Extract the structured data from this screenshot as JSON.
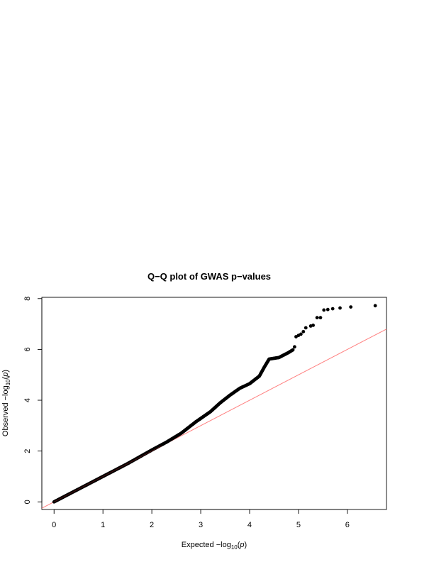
{
  "chart_data": {
    "type": "scatter",
    "title": "Q−Q plot of GWAS p−values",
    "xlabel": {
      "prefix": "Expected  −log",
      "subscript": "10",
      "open": "(",
      "variable": "p",
      "close": ")"
    },
    "ylabel": {
      "prefix": "Observed  −log",
      "subscript": "10",
      "open": "(",
      "variable": "p",
      "close": ")"
    },
    "xlim": [
      -0.25,
      6.8
    ],
    "ylim": [
      -0.3,
      8.05
    ],
    "x_ticks": [
      0,
      1,
      2,
      3,
      4,
      5,
      6
    ],
    "y_ticks": [
      0,
      2,
      4,
      6,
      8
    ],
    "x_tick_labels": [
      "0",
      "1",
      "2",
      "3",
      "4",
      "5",
      "6"
    ],
    "y_tick_labels": [
      "0",
      "2",
      "4",
      "6",
      "8"
    ],
    "grid": false,
    "reference_line": {
      "slope": 1,
      "intercept": 0,
      "color": "#ff7f7f"
    },
    "point_color": "#000000",
    "series": [
      {
        "curve": [
          [
            0.0,
            0.0
          ],
          [
            0.5,
            0.5
          ],
          [
            1.0,
            1.0
          ],
          [
            1.5,
            1.5
          ],
          [
            2.0,
            2.04
          ],
          [
            2.3,
            2.35
          ],
          [
            2.6,
            2.7
          ],
          [
            2.9,
            3.15
          ],
          [
            3.2,
            3.55
          ],
          [
            3.4,
            3.9
          ],
          [
            3.6,
            4.2
          ],
          [
            3.8,
            4.47
          ],
          [
            4.0,
            4.65
          ],
          [
            4.2,
            4.95
          ],
          [
            4.3,
            5.3
          ],
          [
            4.4,
            5.62
          ],
          [
            4.6,
            5.68
          ],
          [
            4.8,
            5.88
          ],
          [
            4.9,
            6.0
          ]
        ],
        "tail": [
          [
            4.92,
            6.1
          ],
          [
            4.95,
            6.5
          ],
          [
            5.0,
            6.55
          ],
          [
            5.05,
            6.6
          ],
          [
            5.1,
            6.7
          ],
          [
            5.15,
            6.85
          ],
          [
            5.25,
            6.92
          ],
          [
            5.3,
            6.95
          ],
          [
            5.38,
            7.25
          ],
          [
            5.45,
            7.25
          ],
          [
            5.52,
            7.55
          ],
          [
            5.6,
            7.57
          ],
          [
            5.7,
            7.6
          ],
          [
            5.85,
            7.63
          ],
          [
            6.07,
            7.67
          ],
          [
            6.57,
            7.72
          ]
        ]
      }
    ]
  }
}
